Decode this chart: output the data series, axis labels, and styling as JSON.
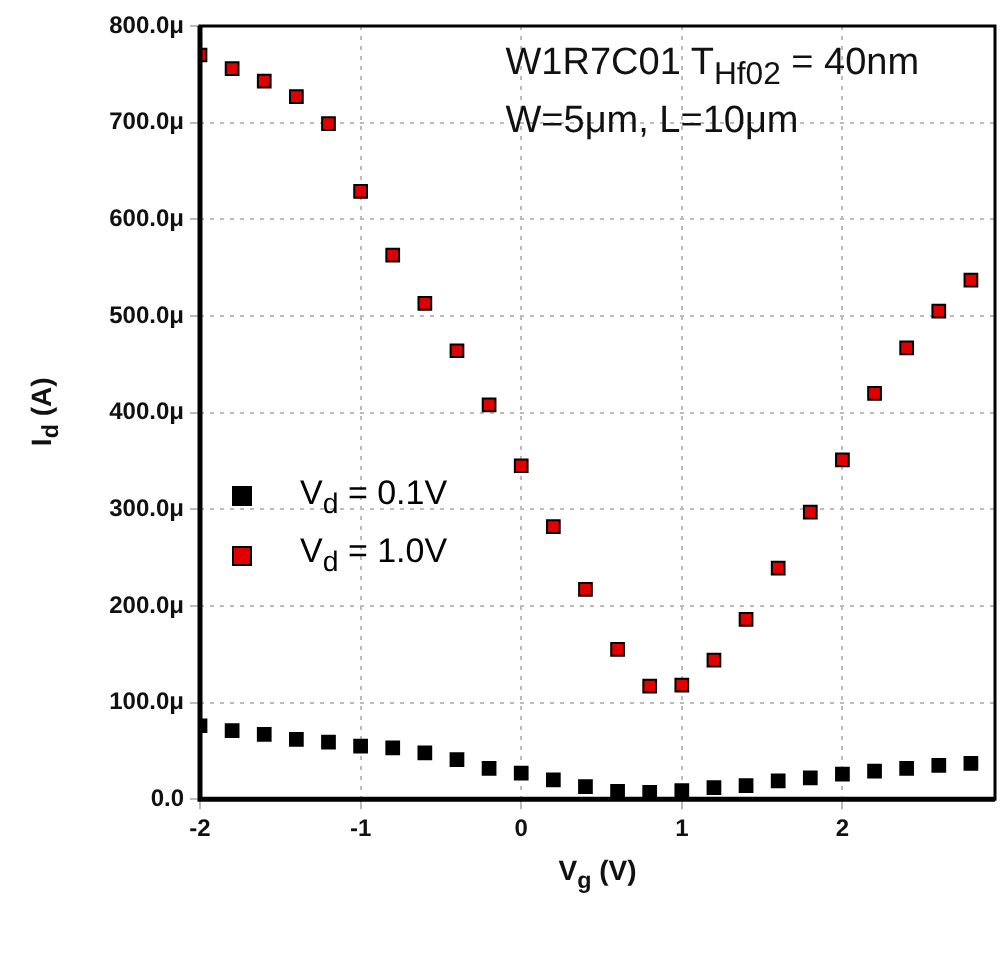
{
  "chart_data": {
    "type": "scatter",
    "xlabel": "V$_{g}$ (V)",
    "ylabel": "I$_{d}$ (A)",
    "annotations": [
      "W1R7C01  T$_{Hf02}$ = 40nm",
      "W=5μm, L=10μm"
    ],
    "x": [
      -2,
      -1.8,
      -1.6,
      -1.4,
      -1.2,
      -1,
      -0.8,
      -0.6,
      -0.4,
      -0.2,
      0,
      0.2,
      0.4,
      0.6,
      0.8,
      1,
      1.2,
      1.4,
      1.6,
      1.8,
      2,
      2.2,
      2.4,
      2.6,
      2.8
    ],
    "series": [
      {
        "name": "V$_{d}$ = 0.1V",
        "color": "#000000",
        "values": [
          76,
          71,
          67,
          62,
          59,
          55,
          53,
          48,
          41,
          32,
          27,
          20,
          13,
          8,
          7,
          9,
          12,
          14,
          19,
          22,
          26,
          29,
          32,
          35,
          37
        ]
      },
      {
        "name": "V$_{d}$ = 1.0V",
        "color": "#e00000",
        "values": [
          770,
          756,
          743,
          727,
          699,
          629,
          563,
          513,
          464,
          408,
          345,
          282,
          217,
          155,
          117,
          118,
          144,
          186,
          239,
          297,
          351,
          420,
          467,
          505,
          537
        ]
      }
    ],
    "xlim": [
      -2,
      2.95
    ],
    "xticks": [
      -2,
      -1,
      0,
      1,
      2
    ],
    "ylim": [
      0,
      800
    ],
    "yticks": [
      {
        "value": 0,
        "label": "0.0"
      },
      {
        "value": 100,
        "label": "100.0μ"
      },
      {
        "value": 200,
        "label": "200.0μ"
      },
      {
        "value": 300,
        "label": "300.0μ"
      },
      {
        "value": 400,
        "label": "400.0μ"
      },
      {
        "value": 500,
        "label": "500.0μ"
      },
      {
        "value": 600,
        "label": "600.0μ"
      },
      {
        "value": 700,
        "label": "700.0μ"
      },
      {
        "value": 800,
        "label": "800.0μ"
      }
    ],
    "grid": true,
    "legend": "left",
    "marker": "square"
  }
}
